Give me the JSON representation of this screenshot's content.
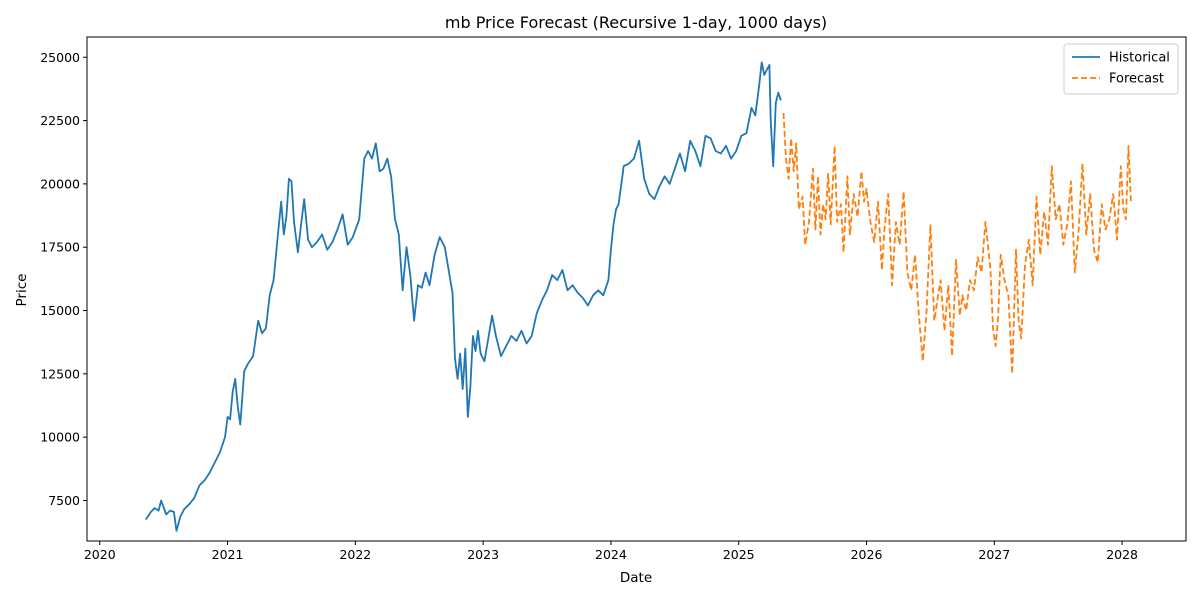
{
  "chart_data": {
    "type": "line",
    "title": "mb Price Forecast (Recursive 1-day, 1000 days)",
    "xlabel": "Date",
    "ylabel": "Price",
    "xlim": [
      2019.9,
      2028.5
    ],
    "ylim": [
      5900,
      25800
    ],
    "x_ticks": [
      2020,
      2021,
      2022,
      2023,
      2024,
      2025,
      2026,
      2027,
      2028
    ],
    "y_ticks": [
      7500,
      10000,
      12500,
      15000,
      17500,
      20000,
      22500,
      25000
    ],
    "grid": false,
    "legend_position": "top-right",
    "series": [
      {
        "name": "Historical",
        "color": "#1f77b4",
        "style": "solid",
        "x": [
          2020.36,
          2020.4,
          2020.43,
          2020.46,
          2020.48,
          2020.52,
          2020.55,
          2020.58,
          2020.6,
          2020.63,
          2020.66,
          2020.7,
          2020.74,
          2020.78,
          2020.82,
          2020.86,
          2020.9,
          2020.94,
          2020.98,
          2021.0,
          2021.02,
          2021.04,
          2021.06,
          2021.08,
          2021.1,
          2021.13,
          2021.16,
          2021.2,
          2021.24,
          2021.27,
          2021.3,
          2021.33,
          2021.36,
          2021.39,
          2021.42,
          2021.44,
          2021.46,
          2021.48,
          2021.5,
          2021.52,
          2021.55,
          2021.58,
          2021.6,
          2021.63,
          2021.66,
          2021.7,
          2021.74,
          2021.78,
          2021.82,
          2021.86,
          2021.9,
          2021.94,
          2021.98,
          2022.03,
          2022.07,
          2022.1,
          2022.13,
          2022.16,
          2022.19,
          2022.22,
          2022.25,
          2022.28,
          2022.31,
          2022.34,
          2022.37,
          2022.4,
          2022.43,
          2022.46,
          2022.49,
          2022.52,
          2022.55,
          2022.58,
          2022.62,
          2022.66,
          2022.7,
          2022.74,
          2022.76,
          2022.78,
          2022.8,
          2022.82,
          2022.84,
          2022.86,
          2022.88,
          2022.9,
          2022.92,
          2022.94,
          2022.96,
          2022.98,
          2023.01,
          2023.04,
          2023.07,
          2023.1,
          2023.14,
          2023.18,
          2023.22,
          2023.26,
          2023.3,
          2023.34,
          2023.38,
          2023.42,
          2023.46,
          2023.5,
          2023.54,
          2023.58,
          2023.62,
          2023.66,
          2023.7,
          2023.74,
          2023.78,
          2023.82,
          2023.86,
          2023.9,
          2023.94,
          2023.98,
          2024.0,
          2024.02,
          2024.04,
          2024.06,
          2024.1,
          2024.14,
          2024.18,
          2024.22,
          2024.26,
          2024.3,
          2024.34,
          2024.38,
          2024.42,
          2024.46,
          2024.5,
          2024.54,
          2024.58,
          2024.62,
          2024.66,
          2024.7,
          2024.74,
          2024.78,
          2024.82,
          2024.86,
          2024.9,
          2024.94,
          2024.98,
          2025.02,
          2025.06,
          2025.1,
          2025.13,
          2025.16,
          2025.18,
          2025.2,
          2025.22,
          2025.24,
          2025.25,
          2025.27,
          2025.29,
          2025.31,
          2025.33
        ],
        "values": [
          6750,
          7050,
          7200,
          7100,
          7500,
          6950,
          7100,
          7050,
          6300,
          6850,
          7150,
          7350,
          7600,
          8100,
          8300,
          8600,
          9000,
          9400,
          10000,
          10800,
          10700,
          11800,
          12300,
          11200,
          10500,
          12600,
          12900,
          13200,
          14600,
          14100,
          14300,
          15600,
          16200,
          17800,
          19300,
          18000,
          18700,
          20200,
          20100,
          18500,
          17300,
          18600,
          19400,
          17800,
          17500,
          17700,
          18000,
          17400,
          17700,
          18200,
          18800,
          17600,
          17900,
          18600,
          21000,
          21300,
          21000,
          21600,
          20500,
          20600,
          21000,
          20300,
          18600,
          18000,
          15800,
          17500,
          16400,
          14600,
          16000,
          15900,
          16500,
          16000,
          17200,
          17900,
          17500,
          16300,
          15700,
          13100,
          12300,
          13300,
          11900,
          13500,
          10800,
          12000,
          14000,
          13400,
          14200,
          13300,
          13000,
          13900,
          14800,
          14000,
          13200,
          13600,
          14000,
          13800,
          14200,
          13700,
          14000,
          14900,
          15400,
          15800,
          16400,
          16200,
          16600,
          15800,
          16000,
          15700,
          15500,
          15200,
          15600,
          15800,
          15600,
          16200,
          17400,
          18400,
          19000,
          19200,
          20700,
          20800,
          21000,
          21700,
          20200,
          19600,
          19400,
          19900,
          20300,
          20000,
          20600,
          21200,
          20500,
          21700,
          21300,
          20700,
          21900,
          21800,
          21300,
          21200,
          21500,
          21000,
          21300,
          21900,
          22000,
          23000,
          22700,
          23900,
          24800,
          24300,
          24500,
          24700,
          22500,
          20700,
          23200,
          23600,
          23300
        ]
      },
      {
        "name": "Forecast",
        "color": "#ff7f0e",
        "style": "dashed",
        "x": [
          2025.35,
          2025.37,
          2025.39,
          2025.41,
          2025.43,
          2025.45,
          2025.47,
          2025.5,
          2025.52,
          2025.55,
          2025.58,
          2025.6,
          2025.62,
          2025.64,
          2025.66,
          2025.68,
          2025.7,
          2025.72,
          2025.75,
          2025.77,
          2025.8,
          2025.82,
          2025.85,
          2025.87,
          2025.9,
          2025.93,
          2025.96,
          2025.98,
          2026.0,
          2026.03,
          2026.06,
          2026.09,
          2026.12,
          2026.14,
          2026.17,
          2026.2,
          2026.23,
          2026.26,
          2026.29,
          2026.32,
          2026.35,
          2026.38,
          2026.41,
          2026.44,
          2026.47,
          2026.5,
          2026.53,
          2026.56,
          2026.58,
          2026.61,
          2026.64,
          2026.67,
          2026.7,
          2026.73,
          2026.75,
          2026.78,
          2026.81,
          2026.84,
          2026.87,
          2026.9,
          2026.93,
          2026.95,
          2026.97,
          2026.99,
          2027.01,
          2027.03,
          2027.05,
          2027.08,
          2027.11,
          2027.14,
          2027.17,
          2027.19,
          2027.21,
          2027.24,
          2027.27,
          2027.3,
          2027.33,
          2027.36,
          2027.39,
          2027.42,
          2027.45,
          2027.48,
          2027.51,
          2027.54,
          2027.57,
          2027.6,
          2027.63,
          2027.66,
          2027.69,
          2027.72,
          2027.75,
          2027.78,
          2027.81,
          2027.84,
          2027.87,
          2027.9,
          2027.93,
          2027.96,
          2027.99,
          2028.01,
          2028.03,
          2028.05,
          2028.07
        ],
        "values": [
          22800,
          21000,
          20200,
          21800,
          20500,
          21600,
          19000,
          19500,
          17600,
          18500,
          20600,
          18200,
          20300,
          18000,
          19200,
          18600,
          20400,
          18400,
          21500,
          18500,
          19200,
          17300,
          20300,
          18000,
          19600,
          18700,
          20500,
          19300,
          19800,
          18500,
          17700,
          19300,
          16600,
          18200,
          19600,
          16000,
          18500,
          17600,
          19700,
          16500,
          15800,
          17200,
          14800,
          13000,
          15000,
          18400,
          14600,
          15600,
          16200,
          14200,
          16000,
          13200,
          17000,
          14800,
          15600,
          15000,
          16200,
          15800,
          17100,
          16500,
          18500,
          17600,
          16600,
          14300,
          13600,
          14700,
          17200,
          16200,
          15600,
          12500,
          17400,
          14600,
          13900,
          16800,
          17800,
          16000,
          19500,
          17200,
          18900,
          17600,
          20700,
          18600,
          19200,
          17600,
          18400,
          20100,
          16500,
          18200,
          20800,
          18000,
          19600,
          17400,
          16900,
          19200,
          18200,
          18600,
          19600,
          17800,
          20700,
          19000,
          18600,
          21500,
          19200
        ]
      }
    ]
  }
}
